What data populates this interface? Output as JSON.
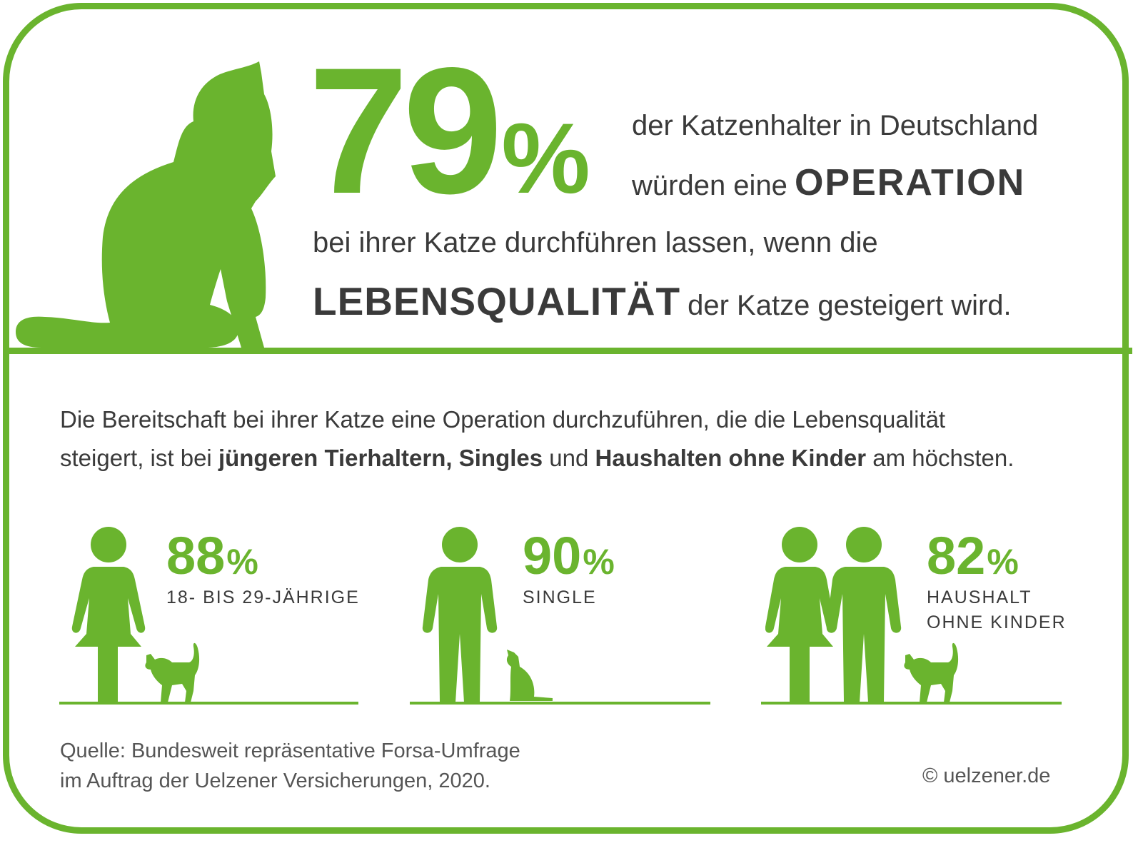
{
  "colors": {
    "accent": "#6ab42e",
    "text": "#3a3a3a",
    "muted": "#555555"
  },
  "headline": {
    "value": "79",
    "unit": "%",
    "line1": "der Katzenhalter in Deutschland",
    "line2_prefix": "würden eine",
    "line2_bold": "OPERATION",
    "line3": "bei ihrer Katze durchführen lassen, wenn die",
    "line4_bold": "LEBENSQUALITÄT",
    "line4_suffix": "der Katze gesteigert wird.",
    "icon": "sitting-cat-icon"
  },
  "intro": {
    "line1": "Die Bereitschaft bei ihrer Katze eine Operation durchzuführen, die die Lebensqualität",
    "line2_a": "steigert, ist bei ",
    "line2_b_bold": "jüngeren Tierhaltern, Singles",
    "line2_c": " und ",
    "line2_d_bold": "Haushalten ohne Kinder",
    "line2_e": " am höchsten."
  },
  "stats": [
    {
      "value": "88",
      "unit": "%",
      "label": "18- BIS 29-JÄHRIGE",
      "icon": "woman-with-cat-icon"
    },
    {
      "value": "90",
      "unit": "%",
      "label": "SINGLE",
      "icon": "man-with-cat-icon"
    },
    {
      "value": "82",
      "unit": "%",
      "label_line1": "HAUSHALT",
      "label_line2": "OHNE KINDER",
      "icon": "couple-with-cat-icon"
    }
  ],
  "footer": {
    "source_line1": "Quelle: Bundesweit repräsentative Forsa-Umfrage",
    "source_line2": "im Auftrag der Uelzener Versicherungen, 2020.",
    "copyright": "© uelzener.de"
  }
}
